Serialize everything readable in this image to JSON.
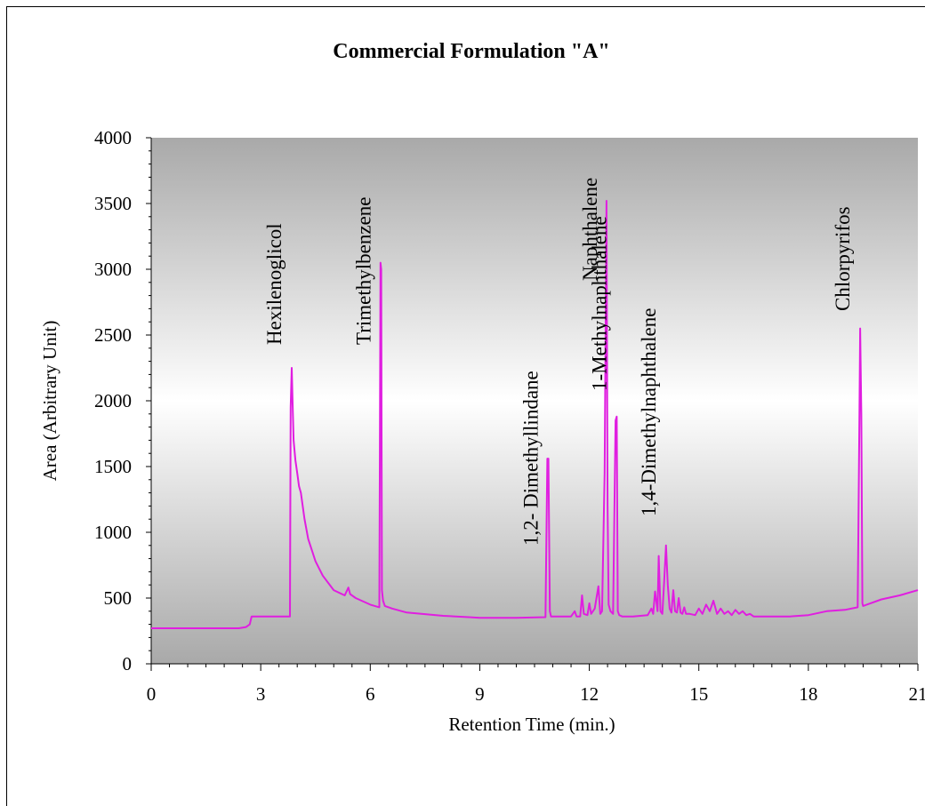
{
  "chart_data": {
    "type": "line",
    "title": "Commercial Formulation \"A\"",
    "xlabel": "Retention Time (min.)",
    "ylabel": "Area (Arbitrary Unit)",
    "xlim": [
      0,
      21
    ],
    "ylim": [
      0,
      4000
    ],
    "x_ticks": [
      0,
      3,
      6,
      9,
      12,
      15,
      18,
      21
    ],
    "y_ticks": [
      0,
      500,
      1000,
      1500,
      2000,
      2500,
      3000,
      3500,
      4000
    ],
    "line_color": "#e01ee0",
    "grid": false,
    "background": "gradient gray-white-gray",
    "series": [
      {
        "x": [
          0,
          2.4,
          2.6,
          2.7,
          2.75,
          3.8,
          3.82,
          3.85,
          3.88,
          3.9,
          3.95,
          4.0,
          4.05,
          4.1,
          4.2,
          4.3,
          4.5,
          4.7,
          5.0,
          5.3,
          5.4,
          5.45,
          5.6,
          6.0,
          6.25,
          6.28,
          6.3,
          6.32,
          6.35,
          6.4,
          6.6,
          7.0,
          8.0,
          8.7,
          9.0,
          10.0,
          10.8,
          10.85,
          10.88,
          10.92,
          10.95,
          11.2,
          11.5,
          11.6,
          11.65,
          11.75,
          11.8,
          11.85,
          11.95,
          12.0,
          12.05,
          12.15,
          12.25,
          12.3,
          12.35,
          12.42,
          12.47,
          12.5,
          12.53,
          12.58,
          12.65,
          12.72,
          12.75,
          12.78,
          12.82,
          12.9,
          13.2,
          13.6,
          13.7,
          13.75,
          13.8,
          13.87,
          13.9,
          13.95,
          14.0,
          14.05,
          14.1,
          14.15,
          14.2,
          14.25,
          14.3,
          14.35,
          14.4,
          14.45,
          14.5,
          14.55,
          14.6,
          14.65,
          14.75,
          14.9,
          15.0,
          15.1,
          15.2,
          15.3,
          15.4,
          15.5,
          15.6,
          15.7,
          15.8,
          15.9,
          16.0,
          16.1,
          16.2,
          16.3,
          16.4,
          16.5,
          17.0,
          17.5,
          18.0,
          18.5,
          19.0,
          19.35,
          19.4,
          19.42,
          19.45,
          19.48,
          19.5,
          19.6,
          20.0,
          20.5,
          21.0
        ],
        "y": [
          270,
          270,
          280,
          300,
          360,
          360,
          1950,
          2250,
          1900,
          1700,
          1550,
          1450,
          1350,
          1300,
          1100,
          950,
          780,
          670,
          560,
          520,
          580,
          530,
          500,
          450,
          430,
          3050,
          3000,
          560,
          480,
          440,
          420,
          390,
          365,
          355,
          350,
          350,
          355,
          1560,
          1560,
          400,
          360,
          360,
          360,
          400,
          360,
          360,
          520,
          380,
          370,
          460,
          380,
          420,
          590,
          380,
          400,
          1450,
          3520,
          1200,
          450,
          400,
          380,
          1850,
          1880,
          400,
          370,
          360,
          360,
          370,
          420,
          380,
          550,
          400,
          820,
          400,
          380,
          620,
          900,
          600,
          420,
          390,
          560,
          400,
          390,
          500,
          390,
          380,
          430,
          380,
          380,
          370,
          420,
          380,
          450,
          400,
          480,
          380,
          420,
          380,
          400,
          370,
          410,
          380,
          400,
          370,
          380,
          360,
          360,
          360,
          370,
          400,
          410,
          430,
          1900,
          2550,
          1900,
          460,
          440,
          450,
          490,
          520,
          560
        ]
      }
    ],
    "annotations": [
      {
        "text": "Hexilenoglicol",
        "x": 3.85
      },
      {
        "text": "Trimethylbenzene",
        "x": 6.3
      },
      {
        "text": "1,2- Dimethyllindane",
        "x": 10.88
      },
      {
        "text": "Naphthalene",
        "x": 12.5
      },
      {
        "text": "1-Methylnaphthalene",
        "x": 12.75
      },
      {
        "text": "1,4-Dimethylnaphthalene",
        "x": 14.1
      },
      {
        "text": "Chlorpyrifos",
        "x": 19.42
      }
    ]
  }
}
